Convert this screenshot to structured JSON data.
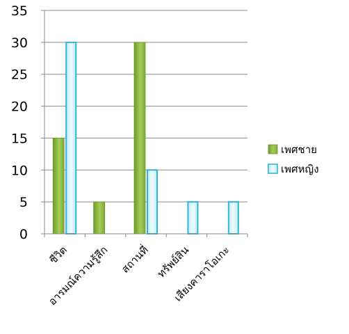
{
  "chart_data": {
    "type": "bar",
    "categories": [
      "ชีวิต",
      "อารมณ์ความรู้สึก",
      "สถานที่",
      "ทรัพย์สิน",
      "เสียงคาราโอเกะ"
    ],
    "series": [
      {
        "name": "เพศชาย",
        "values": [
          15,
          5,
          30,
          0,
          0
        ],
        "color": "#8fc047"
      },
      {
        "name": "เพศหญิง",
        "values": [
          30,
          0,
          10,
          5,
          5
        ],
        "color": "#c7eefa"
      }
    ],
    "ylim": [
      0,
      35
    ],
    "yticks": [
      0,
      5,
      10,
      15,
      20,
      25,
      30,
      35
    ],
    "grid": true,
    "legend_position": "right"
  },
  "colors": {
    "male_dark": "#6e9a2c",
    "male_light": "#a3cf55",
    "female_border": "#2fb6d6",
    "female_fill": "#d8f4fb",
    "axis": "#8a8a8a",
    "grid": "#8a8a8a",
    "text": "#000000"
  }
}
